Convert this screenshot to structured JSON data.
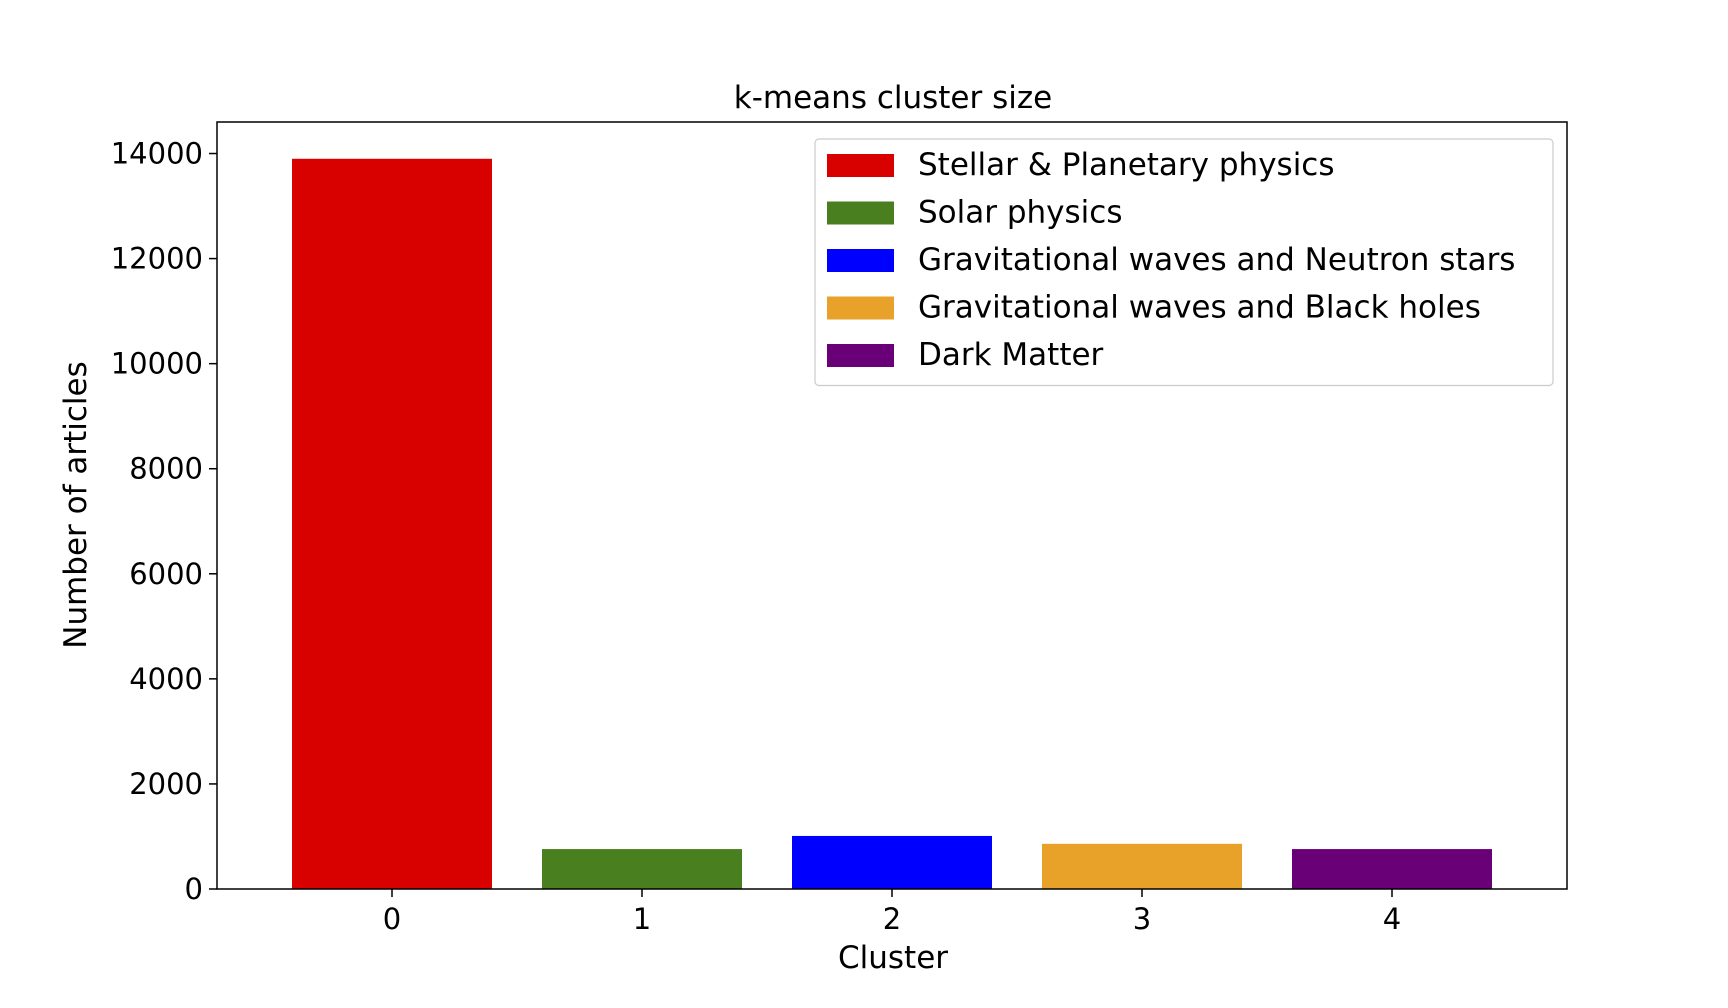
{
  "chart_data": {
    "type": "bar",
    "title": "k-means cluster size",
    "xlabel": "Cluster",
    "ylabel": "Number of articles",
    "categories": [
      "0",
      "1",
      "2",
      "3",
      "4"
    ],
    "values": [
      13900,
      760,
      1010,
      860,
      760
    ],
    "colors": [
      "#d90000",
      "#4a7f1f",
      "#0000ff",
      "#e8a22a",
      "#6a0078"
    ],
    "yticks": [
      0,
      2000,
      4000,
      6000,
      8000,
      10000,
      12000,
      14000
    ],
    "ylim": [
      0,
      14600
    ],
    "grid": false,
    "legend_position": "top-right",
    "legend": [
      {
        "label": "Stellar & Planetary physics",
        "color": "#d90000"
      },
      {
        "label": "Solar physics",
        "color": "#4a7f1f"
      },
      {
        "label": "Gravitational waves and Neutron stars",
        "color": "#0000ff"
      },
      {
        "label": "Gravitational waves and Black holes",
        "color": "#e8a22a"
      },
      {
        "label": "Dark Matter",
        "color": "#6a0078"
      }
    ]
  }
}
